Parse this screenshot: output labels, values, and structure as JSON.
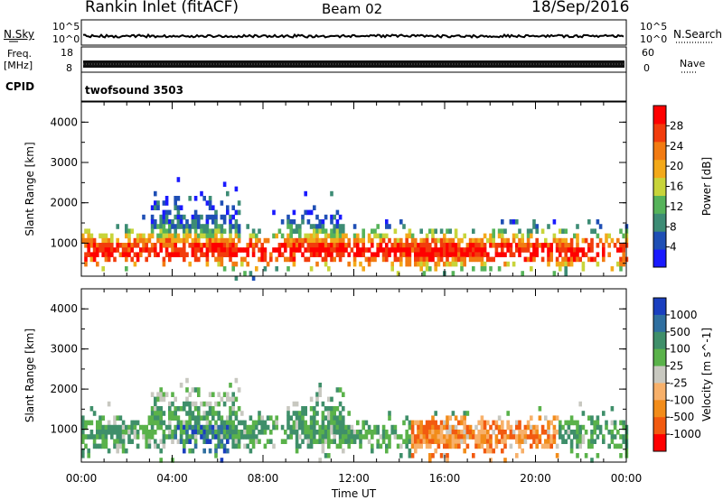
{
  "header": {
    "title": "Rankin Inlet (fitACF)",
    "beam": "Beam 02",
    "date": "18/Sep/2016"
  },
  "aux": {
    "nsky_label": "N.Sky",
    "nsearch_label": "N.Search",
    "freq_label_1": "Freq.",
    "freq_label_2": "[MHz]",
    "nave_label": "Nave",
    "cpid_label": "CPID",
    "cpid_value": "twofsound 3503",
    "noise_ticks": [
      "10^5",
      "10^0"
    ],
    "freq_ticks": [
      "18",
      "8"
    ],
    "nave_ticks": [
      "60",
      "0"
    ]
  },
  "colors": {
    "power_scale": [
      "#1a1aff",
      "#1f4fb5",
      "#3d8c75",
      "#56b35a",
      "#c8d43a",
      "#f3a91a",
      "#f27b12",
      "#f23c0c",
      "#ff0000"
    ],
    "velocity_scale": [
      "#1a3fbf",
      "#2f6fa0",
      "#3f8f6a",
      "#5ab24a",
      "#c8c8c0",
      "#f7b06a",
      "#f28c1a",
      "#f25a10",
      "#ff0000"
    ]
  },
  "chart_data": {
    "type": "heatmap",
    "xlabel": "Time UT",
    "x_ticks": [
      "00:00",
      "04:00",
      "08:00",
      "12:00",
      "16:00",
      "20:00",
      "00:00"
    ],
    "panels": [
      {
        "name": "power",
        "ylabel": "Slant Range [km]",
        "y_ticks": [
          "1000",
          "2000",
          "3000",
          "4000"
        ],
        "ylim": [
          180,
          4500
        ],
        "colorbar_label": "Power [dB]",
        "colorbar_ticks": [
          "28",
          "24",
          "20",
          "16",
          "12",
          "8",
          "4"
        ],
        "colorbar_range": [
          0,
          32
        ]
      },
      {
        "name": "velocity",
        "ylabel": "Slant Range [km]",
        "y_ticks": [
          "1000",
          "2000",
          "3000",
          "4000"
        ],
        "ylim": [
          180,
          4500
        ],
        "colorbar_label": "Velocity [m s^-1]",
        "colorbar_ticks": [
          "1000",
          "500",
          "100",
          "25",
          "-25",
          "-100",
          "-500",
          "-1000"
        ],
        "colorbar_units": "m s-1"
      }
    ]
  }
}
